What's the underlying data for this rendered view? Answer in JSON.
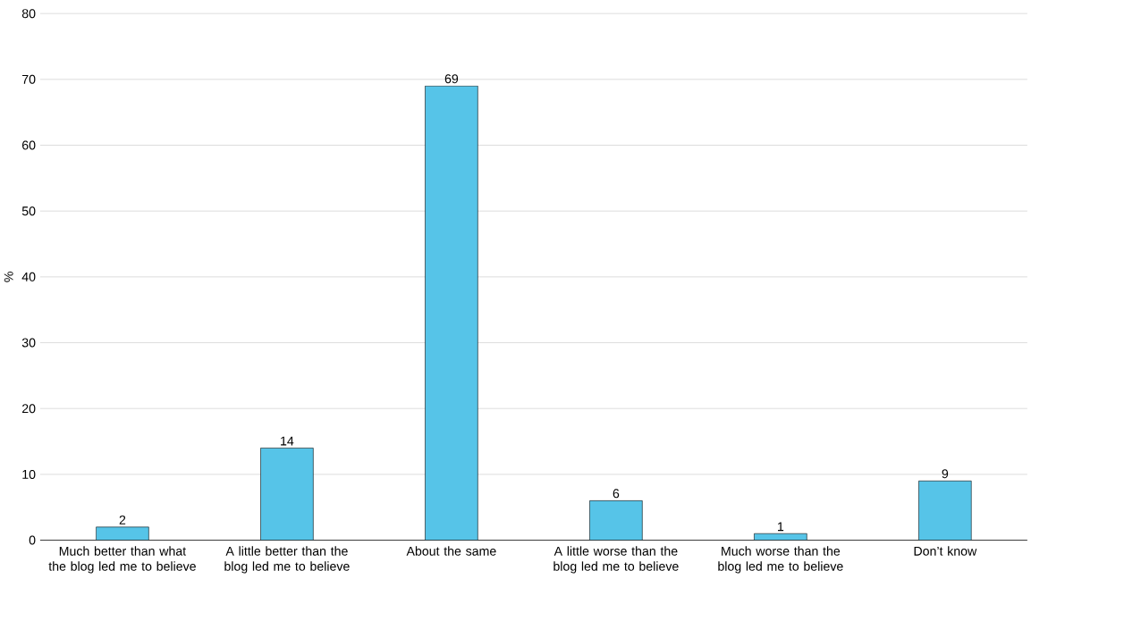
{
  "chart_data": {
    "type": "bar",
    "ylabel": "%",
    "categories": [
      "Much better than what the blog led me to believe",
      "A little better than the blog led me to believe",
      "About the same",
      "A little worse than the blog led me to believe",
      "Much worse than the blog led me to believe",
      "Don’t know"
    ],
    "values": [
      2,
      14,
      69,
      6,
      1,
      9
    ],
    "color": "#56c4e8",
    "ylim": [
      0,
      80
    ],
    "yticks": [
      0,
      10,
      20,
      30,
      40,
      50,
      60,
      70,
      80
    ],
    "grid": "y",
    "data_labels": true
  }
}
